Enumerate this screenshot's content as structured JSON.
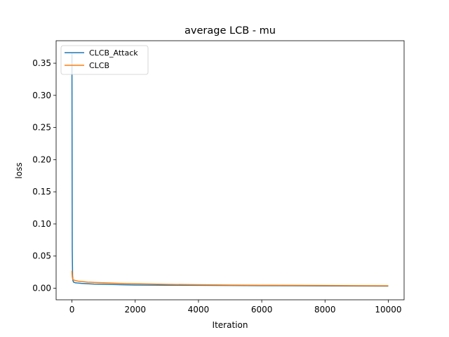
{
  "chart_data": {
    "type": "line",
    "title": "average LCB - mu",
    "xlabel": "Iteration",
    "ylabel": "loss",
    "xlim": [
      -500,
      10500
    ],
    "ylim": [
      -0.018,
      0.385
    ],
    "xticks": [
      0,
      2000,
      4000,
      6000,
      8000,
      10000
    ],
    "xtick_labels": [
      "0",
      "2000",
      "4000",
      "6000",
      "8000",
      "10000"
    ],
    "yticks": [
      0.0,
      0.05,
      0.1,
      0.15,
      0.2,
      0.25,
      0.3,
      0.35
    ],
    "ytick_labels": [
      "0.00",
      "0.05",
      "0.10",
      "0.15",
      "0.20",
      "0.25",
      "0.30",
      "0.35"
    ],
    "grid": false,
    "legend_position": "top-left",
    "series": [
      {
        "name": "CLCB_Attack",
        "color": "#1f77b4",
        "x": [
          0,
          5,
          10,
          20,
          30,
          50,
          100,
          200,
          300,
          500,
          700,
          1000,
          1500,
          2000,
          3000,
          4000,
          5000,
          6000,
          7000,
          8000,
          9000,
          10000
        ],
        "y": [
          0.365,
          0.2,
          0.06,
          0.02,
          0.012,
          0.0095,
          0.0085,
          0.008,
          0.0075,
          0.007,
          0.0065,
          0.0062,
          0.0055,
          0.005,
          0.0047,
          0.0045,
          0.0042,
          0.004,
          0.0038,
          0.0036,
          0.0034,
          0.0033
        ]
      },
      {
        "name": "CLCB",
        "color": "#ff7f0e",
        "x": [
          0,
          5,
          10,
          20,
          30,
          50,
          100,
          200,
          300,
          500,
          700,
          1000,
          1500,
          2000,
          3000,
          4000,
          5000,
          6000,
          7000,
          8000,
          9000,
          10000
        ],
        "y": [
          0.027,
          0.022,
          0.018,
          0.015,
          0.0135,
          0.013,
          0.012,
          0.011,
          0.0105,
          0.0095,
          0.009,
          0.0085,
          0.0075,
          0.007,
          0.006,
          0.0055,
          0.005,
          0.0047,
          0.0045,
          0.0042,
          0.004,
          0.0038
        ]
      }
    ]
  }
}
